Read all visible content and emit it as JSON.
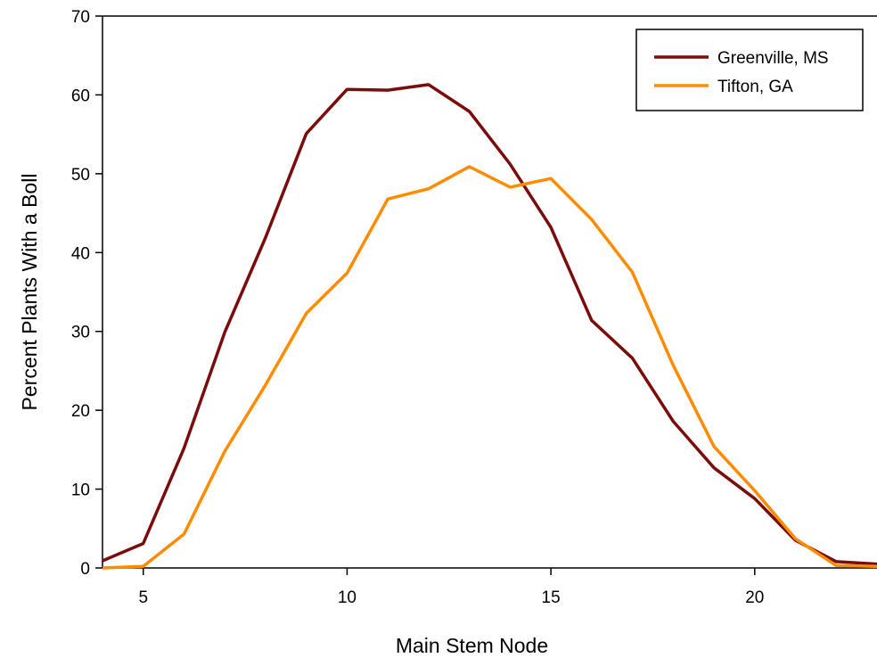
{
  "chart_data": {
    "type": "line",
    "xlabel": "Main Stem Node",
    "ylabel": "Percent Plants With a Boll",
    "xlim": [
      4,
      23
    ],
    "ylim": [
      0,
      70
    ],
    "xticks": [
      5,
      10,
      15,
      20
    ],
    "yticks": [
      0,
      10,
      20,
      30,
      40,
      50,
      60,
      70
    ],
    "grid": false,
    "legend_position": "top-right",
    "series": [
      {
        "name": "Greenville, MS",
        "color": "#7B0C0C",
        "x": [
          4,
          5,
          6,
          7,
          8,
          9,
          10,
          11,
          12,
          13,
          14,
          15,
          16,
          17,
          18,
          19,
          20,
          21,
          22,
          23
        ],
        "y": [
          0.9,
          3.1,
          15.2,
          29.9,
          41.9,
          55.1,
          60.7,
          60.6,
          61.3,
          57.9,
          51.2,
          43.2,
          31.4,
          26.6,
          18.6,
          12.7,
          8.8,
          3.5,
          0.8,
          0.5
        ]
      },
      {
        "name": "Tifton, GA",
        "color": "#FF8C00",
        "x": [
          4,
          5,
          6,
          7,
          8,
          9,
          10,
          11,
          12,
          13,
          14,
          15,
          16,
          17,
          18,
          19,
          20,
          21,
          22,
          23
        ],
        "y": [
          0.0,
          0.2,
          4.3,
          14.8,
          23.2,
          32.3,
          37.4,
          46.8,
          48.1,
          50.9,
          48.3,
          49.4,
          44.2,
          37.5,
          25.7,
          15.4,
          9.8,
          3.7,
          0.3,
          0.2
        ]
      }
    ]
  }
}
